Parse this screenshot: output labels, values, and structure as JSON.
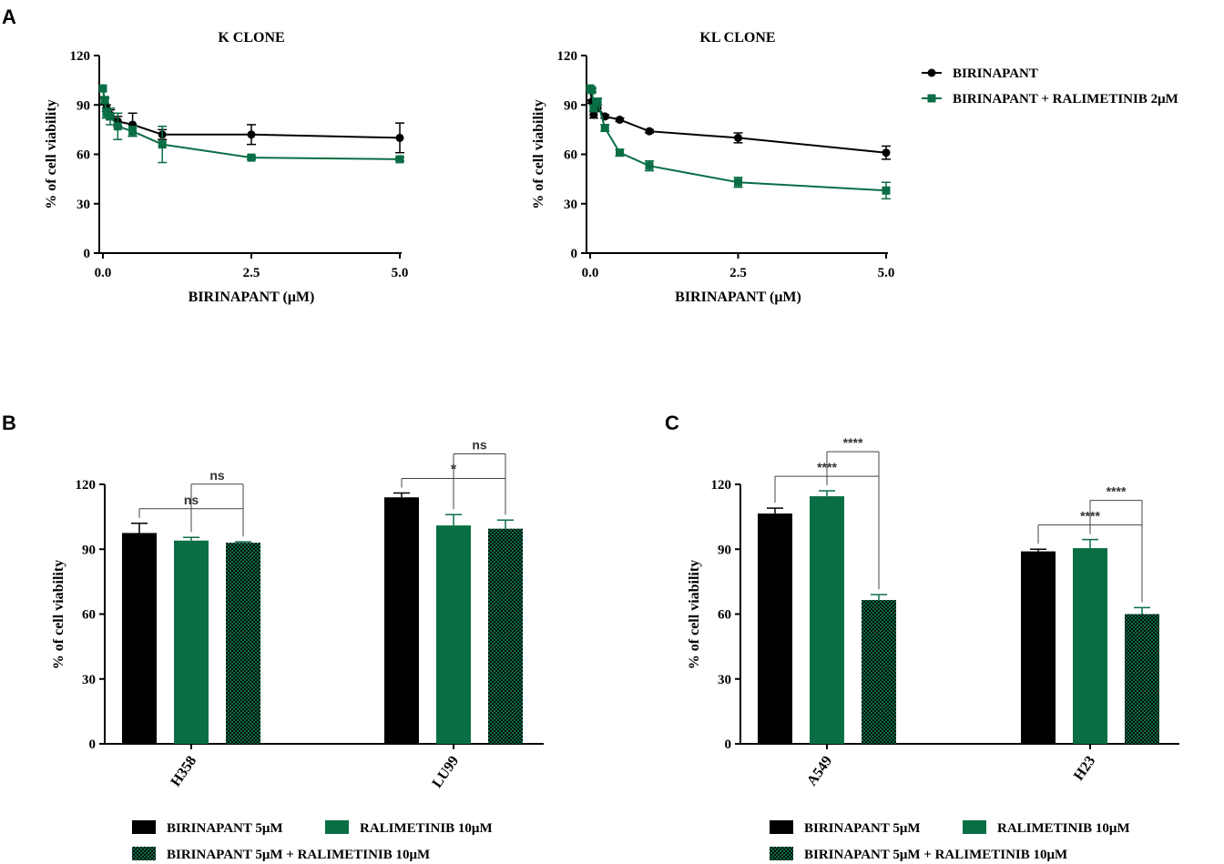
{
  "colors": {
    "black": "#000000",
    "green": "#0a6e45",
    "axis": "#000000",
    "sig": "#555555"
  },
  "legends": {
    "a": {
      "birinapant": "BIRINAPANT",
      "combo": "BIRINAPANT + RALIMETINIB 2μM"
    },
    "b": {
      "birinapant": "BIRINAPANT 5μM",
      "ralimetinib": "RALIMETINIB 10μM",
      "combo": "BIRINAPANT 5μM + RALIMETINIB 10μM"
    },
    "c": {
      "birinapant": "BIRINAPANT 5μM",
      "ralimetinib": "RALIMETINIB 10μM",
      "combo": "BIRINAPANT 5μM + RALIMETINIB 10μM"
    }
  },
  "chart_data": [
    {
      "panel": "A",
      "type": "line",
      "title": "K CLONE",
      "xlabel": "BIRINAPANT (μM)",
      "ylabel": "% of cell viability",
      "xlim": [
        0,
        5
      ],
      "ylim": [
        0,
        120
      ],
      "xticks": [
        "0.0",
        "2.5",
        "5.0"
      ],
      "yticks": [
        "0",
        "30",
        "60",
        "90",
        "120"
      ],
      "series": [
        {
          "name": "BIRINAPANT",
          "color": "#000000",
          "marker": "circle",
          "x": [
            0,
            0.03,
            0.06,
            0.125,
            0.25,
            0.5,
            1,
            2.5,
            5
          ],
          "y": [
            100,
            92,
            88,
            84,
            80,
            78,
            72,
            72,
            70
          ],
          "err": [
            0,
            2,
            2,
            3,
            3,
            7,
            3,
            6,
            9
          ]
        },
        {
          "name": "BIRINAPANT + RALIMETINIB 2μM",
          "color": "#0a6e45",
          "marker": "square",
          "x": [
            0,
            0.03,
            0.06,
            0.125,
            0.25,
            0.5,
            1,
            2.5,
            5
          ],
          "y": [
            100,
            93,
            85,
            83,
            77,
            74,
            66,
            58,
            57
          ],
          "err": [
            0,
            2,
            3,
            5,
            8,
            3,
            11,
            1,
            1
          ]
        }
      ]
    },
    {
      "panel": "A",
      "type": "line",
      "title": "KL CLONE",
      "xlabel": "BIRINAPANT (μM)",
      "ylabel": "% of cell viability",
      "xlim": [
        0,
        5
      ],
      "ylim": [
        0,
        120
      ],
      "xticks": [
        "0.0",
        "2.5",
        "5.0"
      ],
      "yticks": [
        "0",
        "30",
        "60",
        "90",
        "120"
      ],
      "series": [
        {
          "name": "BIRINAPANT",
          "color": "#000000",
          "marker": "circle",
          "x": [
            0,
            0.03,
            0.06,
            0.125,
            0.25,
            0.5,
            1,
            2.5,
            5
          ],
          "y": [
            100,
            92,
            84,
            88,
            83,
            81,
            74,
            70,
            61
          ],
          "err": [
            0,
            1,
            2,
            2,
            1,
            1,
            1,
            3,
            4
          ]
        },
        {
          "name": "BIRINAPANT + RALIMETINIB 2μM",
          "color": "#0a6e45",
          "marker": "square",
          "x": [
            0,
            0.03,
            0.06,
            0.125,
            0.25,
            0.5,
            1,
            2.5,
            5
          ],
          "y": [
            100,
            99,
            88,
            92,
            76,
            61,
            53,
            43,
            38
          ],
          "err": [
            0,
            1,
            2,
            2,
            2,
            2,
            3,
            3,
            5
          ]
        }
      ]
    },
    {
      "panel": "B",
      "type": "bar",
      "ylabel": "% of cell viability",
      "ylim": [
        0,
        120
      ],
      "yticks": [
        "0",
        "30",
        "60",
        "90",
        "120"
      ],
      "categories": [
        "H358",
        "LU99"
      ],
      "series": [
        {
          "name": "BIRINAPANT 5μM",
          "color": "#000000",
          "pattern": "solid",
          "values": [
            97.5,
            114
          ],
          "err": [
            4.5,
            2
          ]
        },
        {
          "name": "RALIMETINIB 10μM",
          "color": "#0a6e45",
          "pattern": "solid",
          "values": [
            94,
            101
          ],
          "err": [
            1.5,
            5
          ]
        },
        {
          "name": "BIRINAPANT 5μM + RALIMETINIB 10μM",
          "color": "#0a6e45",
          "pattern": "checker",
          "values": [
            93,
            99.5
          ],
          "err": [
            0.4,
            4
          ]
        }
      ],
      "significance": [
        {
          "category": 0,
          "from": 0,
          "to": 2,
          "level": 0,
          "label": "ns"
        },
        {
          "category": 0,
          "from": 1,
          "to": 2,
          "level": 1,
          "label": "ns"
        },
        {
          "category": 1,
          "from": 0,
          "to": 2,
          "level": 0,
          "label": "*"
        },
        {
          "category": 1,
          "from": 1,
          "to": 2,
          "level": 1,
          "label": "ns"
        }
      ]
    },
    {
      "panel": "C",
      "type": "bar",
      "ylabel": "% of cell viability",
      "ylim": [
        0,
        120
      ],
      "yticks": [
        "0",
        "30",
        "60",
        "90",
        "120"
      ],
      "categories": [
        "A549",
        "H23"
      ],
      "series": [
        {
          "name": "BIRINAPANT 5μM",
          "color": "#000000",
          "pattern": "solid",
          "values": [
            106.5,
            89
          ],
          "err": [
            2.5,
            1
          ]
        },
        {
          "name": "RALIMETINIB 10μM",
          "color": "#0a6e45",
          "pattern": "solid",
          "values": [
            114.5,
            90.5
          ],
          "err": [
            2.5,
            4
          ]
        },
        {
          "name": "BIRINAPANT 5μM + RALIMETINIB 10μM",
          "color": "#0a6e45",
          "pattern": "checker",
          "values": [
            66.5,
            60
          ],
          "err": [
            2.5,
            3
          ]
        }
      ],
      "significance": [
        {
          "category": 0,
          "from": 0,
          "to": 2,
          "level": 0,
          "label": "****"
        },
        {
          "category": 0,
          "from": 1,
          "to": 2,
          "level": 1,
          "label": "****"
        },
        {
          "category": 1,
          "from": 0,
          "to": 2,
          "level": 0,
          "label": "****"
        },
        {
          "category": 1,
          "from": 1,
          "to": 2,
          "level": 1,
          "label": "****"
        }
      ]
    }
  ],
  "panel_labels": {
    "a": "A",
    "b": "B",
    "c": "C"
  }
}
